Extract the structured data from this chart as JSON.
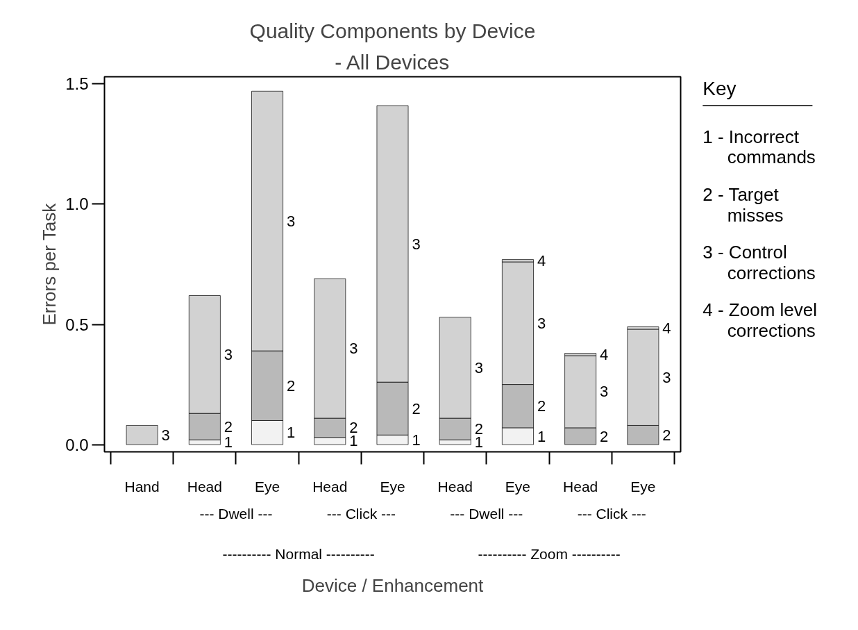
{
  "chart_data": {
    "type": "bar",
    "stacked": true,
    "title": "Quality Components by Device",
    "subtitle": "- All Devices",
    "xlabel": "Device / Enhancement",
    "ylabel": "Errors per Task",
    "legend_title": "Key",
    "categories": [
      "Hand",
      "Head",
      "Eye",
      "Head",
      "Eye",
      "Head",
      "Eye",
      "Head",
      "Eye"
    ],
    "series": [
      {
        "name": "1",
        "color": "#f2f2f2",
        "values": [
          0,
          0.02,
          0.1,
          0.03,
          0.04,
          0.02,
          0.07,
          0,
          0
        ]
      },
      {
        "name": "2",
        "color": "#b9b9b9",
        "values": [
          0,
          0.11,
          0.29,
          0.08,
          0.22,
          0.09,
          0.18,
          0.07,
          0.08
        ]
      },
      {
        "name": "3",
        "color": "#d2d2d2",
        "values": [
          0.08,
          0.49,
          1.08,
          0.58,
          1.15,
          0.42,
          0.51,
          0.3,
          0.4
        ]
      },
      {
        "name": "4",
        "color": "#d2d2d2",
        "values": [
          0,
          0,
          0,
          0,
          0,
          0,
          0.01,
          0.01,
          0.01
        ]
      }
    ],
    "ylim": [
      -0.03,
      1.53
    ],
    "yticks": [
      {
        "value": 0,
        "label": "0.0"
      },
      {
        "value": 0.5,
        "label": "0.5"
      },
      {
        "value": 1,
        "label": "1.0"
      },
      {
        "value": 1.5,
        "label": "1.5"
      }
    ],
    "legend": "right",
    "annotations": [
      "--- Dwell ---",
      "--- Click ---",
      "--- Dwell ---",
      "--- Click ---",
      "---------- Normal ----------",
      "---------- Zoom ----------",
      "1 - Incorrect commands",
      "2 - Target misses",
      "3 - Control corrections",
      "4 - Zoom level corrections"
    ]
  }
}
